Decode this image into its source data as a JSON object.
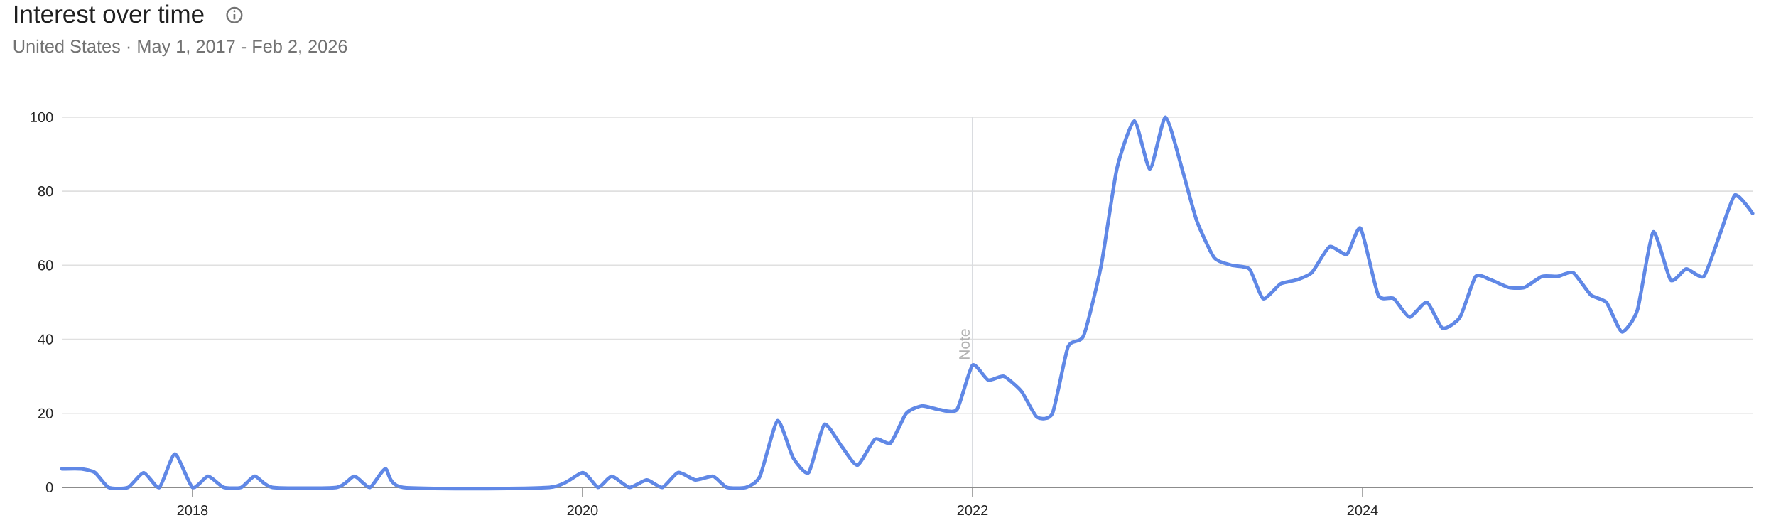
{
  "chart_data": {
    "type": "line",
    "title": "Interest over time",
    "subtitle": "United States · May 1, 2017 - Feb 2, 2026",
    "x": [
      2017.33,
      2017.43,
      2017.5,
      2017.57,
      2017.67,
      2017.75,
      2017.83,
      2017.91,
      2018.0,
      2018.08,
      2018.16,
      2018.25,
      2018.32,
      2018.41,
      2018.74,
      2018.83,
      2018.91,
      2018.99,
      2019.08,
      2019.83,
      2020.0,
      2020.08,
      2020.15,
      2020.24,
      2020.33,
      2020.41,
      2020.49,
      2020.58,
      2020.67,
      2020.74,
      2020.84,
      2020.91,
      2021.0,
      2021.08,
      2021.16,
      2021.24,
      2021.33,
      2021.41,
      2021.5,
      2021.58,
      2021.66,
      2021.74,
      2021.83,
      2021.92,
      2022.0,
      2022.08,
      2022.16,
      2022.25,
      2022.33,
      2022.41,
      2022.49,
      2022.57,
      2022.66,
      2022.74,
      2022.83,
      2022.91,
      2022.99,
      2023.08,
      2023.15,
      2023.24,
      2023.33,
      2023.42,
      2023.49,
      2023.58,
      2023.66,
      2023.74,
      2023.83,
      2023.92,
      2023.99,
      2024.08,
      2024.16,
      2024.24,
      2024.33,
      2024.41,
      2024.5,
      2024.58,
      2024.66,
      2024.75,
      2024.83,
      2024.92,
      2025.0,
      2025.08,
      2025.17,
      2025.25,
      2025.33,
      2025.41,
      2025.49,
      2025.58,
      2025.66,
      2025.75,
      2025.83,
      2025.91,
      2026.0
    ],
    "series": [
      {
        "color": "#6088e6",
        "values": [
          5,
          5,
          4,
          0,
          0,
          4,
          0,
          9,
          0,
          3,
          0,
          0,
          3,
          0,
          0,
          3,
          0,
          5,
          0,
          0,
          4,
          0,
          3,
          0,
          2,
          0,
          4,
          2,
          3,
          0,
          0,
          3,
          18,
          8,
          4,
          17,
          11,
          6,
          13,
          12,
          20,
          22,
          21,
          21,
          33,
          29,
          30,
          26,
          19,
          20,
          38,
          41,
          60,
          86,
          99,
          86,
          100,
          85,
          72,
          62,
          60,
          59,
          51,
          55,
          56,
          58,
          65,
          63,
          70,
          52,
          51,
          46,
          50,
          43,
          46,
          57,
          56,
          54,
          54,
          57,
          57,
          58,
          52,
          50,
          42,
          48,
          69,
          56,
          59,
          57,
          68,
          79,
          74
        ]
      }
    ],
    "xlim": [
      2017.33,
      2026.0
    ],
    "ylim": [
      0,
      100
    ],
    "xticks": [
      2018,
      2020,
      2022,
      2024
    ],
    "yticks": [
      0,
      20,
      40,
      60,
      80,
      100
    ],
    "grid": "y",
    "ref_lines": [
      {
        "axis": "x",
        "value": 2022,
        "label": "Note",
        "color": "#dadce0"
      }
    ]
  }
}
